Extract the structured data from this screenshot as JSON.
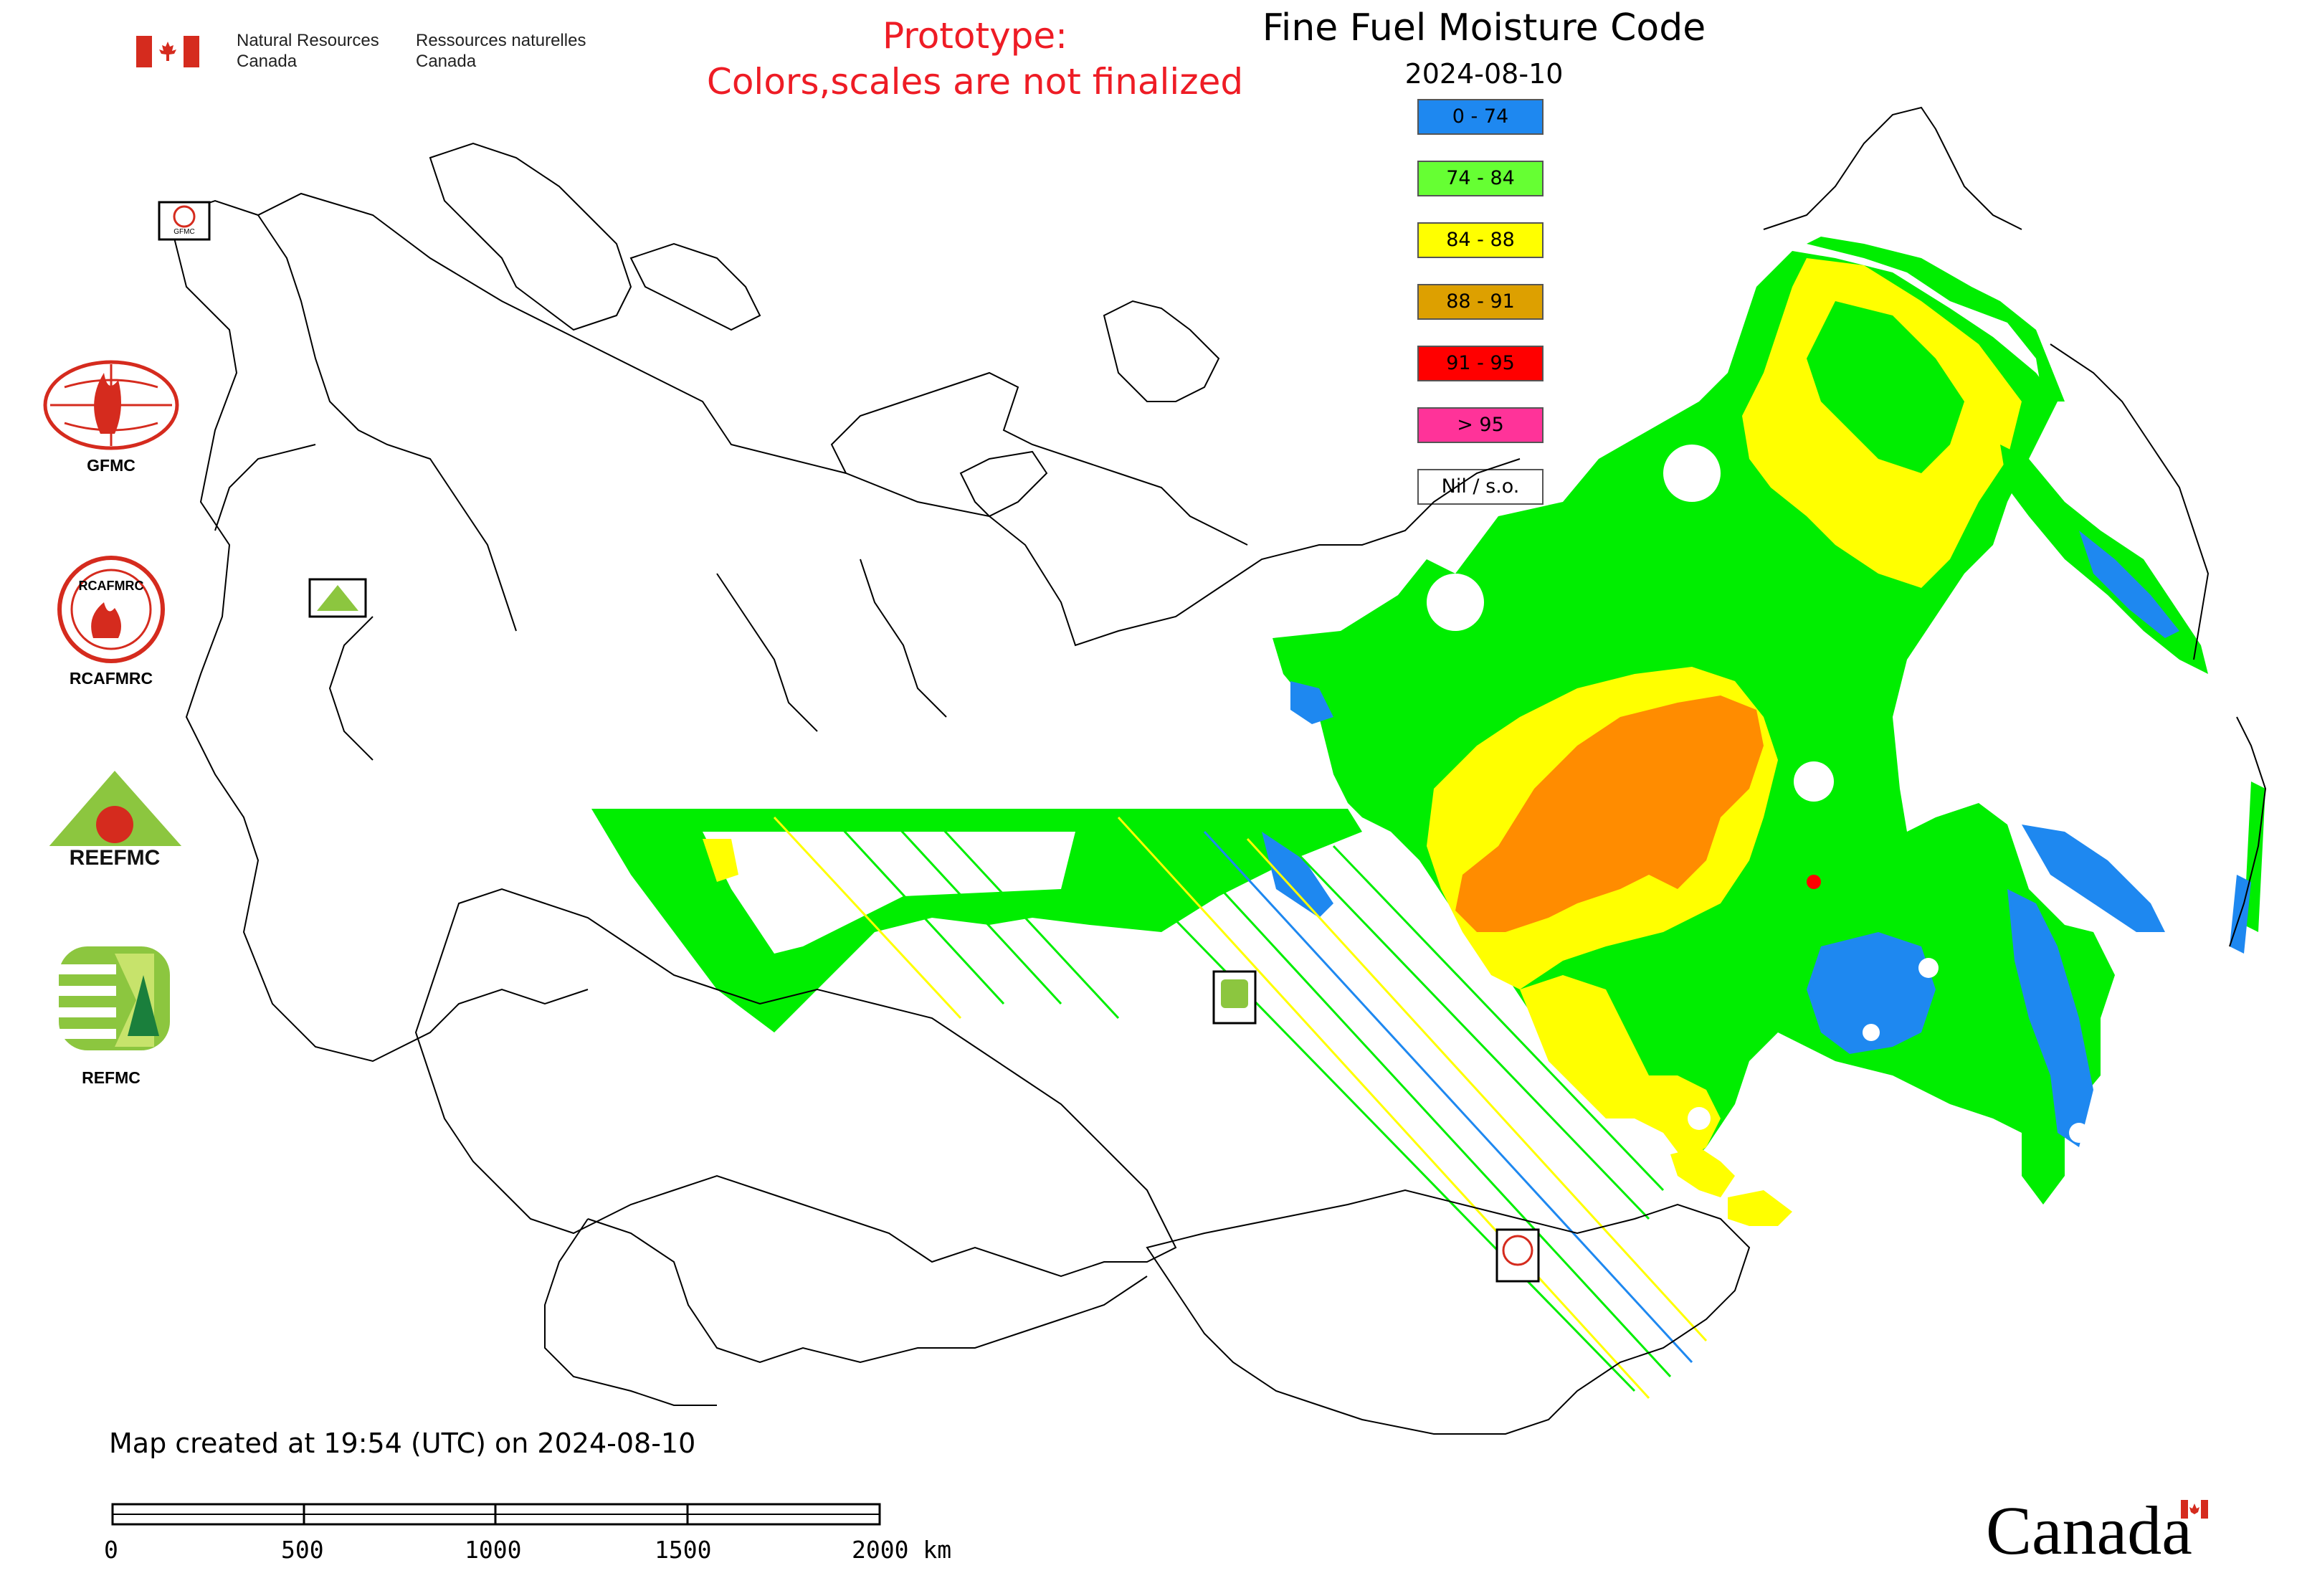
{
  "header": {
    "gov_en": [
      "Natural Resources",
      "Canada"
    ],
    "gov_fr": [
      "Ressources naturelles",
      "Canada"
    ],
    "prototype_line1": "Prototype:",
    "prototype_line2": "Colors,scales are not finalized",
    "title": "Fine Fuel Moisture Code",
    "date": "2024-08-10"
  },
  "legend": [
    {
      "label": "0 - 74",
      "color": "#1e88f0"
    },
    {
      "label": "74 - 84",
      "color": "#66ff33"
    },
    {
      "label": "84 - 88",
      "color": "#ffff00"
    },
    {
      "label": "88 - 91",
      "color": "#dda000"
    },
    {
      "label": "91 - 95",
      "color": "#ff0000"
    },
    {
      "label": "> 95",
      "color": "#ff3399"
    },
    {
      "label": "Nil / s.o.",
      "color": "#ffffff"
    }
  ],
  "logos": [
    {
      "name": "GFMC",
      "icon": "gfmc-logo-icon"
    },
    {
      "name": "RCAFMRC",
      "icon": "rcafmrc-logo-icon"
    },
    {
      "name": "REEFMC",
      "icon": "reefmc-logo-icon"
    },
    {
      "name": "REFMC",
      "icon": "refmc-logo-icon"
    }
  ],
  "logo_texts": {
    "gfmc_small": "GFMC",
    "reefmc": "REEFMC",
    "rcafmrc_ring": "RCAFMRC"
  },
  "map_colors": {
    "green": "#00ee00",
    "yellow": "#ffff00",
    "orange": "#ff8c00",
    "blue": "#1e88f0",
    "red": "#ff0000",
    "outline": "#000000"
  },
  "footer": {
    "created": "Map created at 19:54 (UTC) on 2024-08-10",
    "scale_labels": [
      "0",
      "500",
      "1000",
      "1500",
      "2000 km"
    ],
    "wordmark": "Canada"
  }
}
